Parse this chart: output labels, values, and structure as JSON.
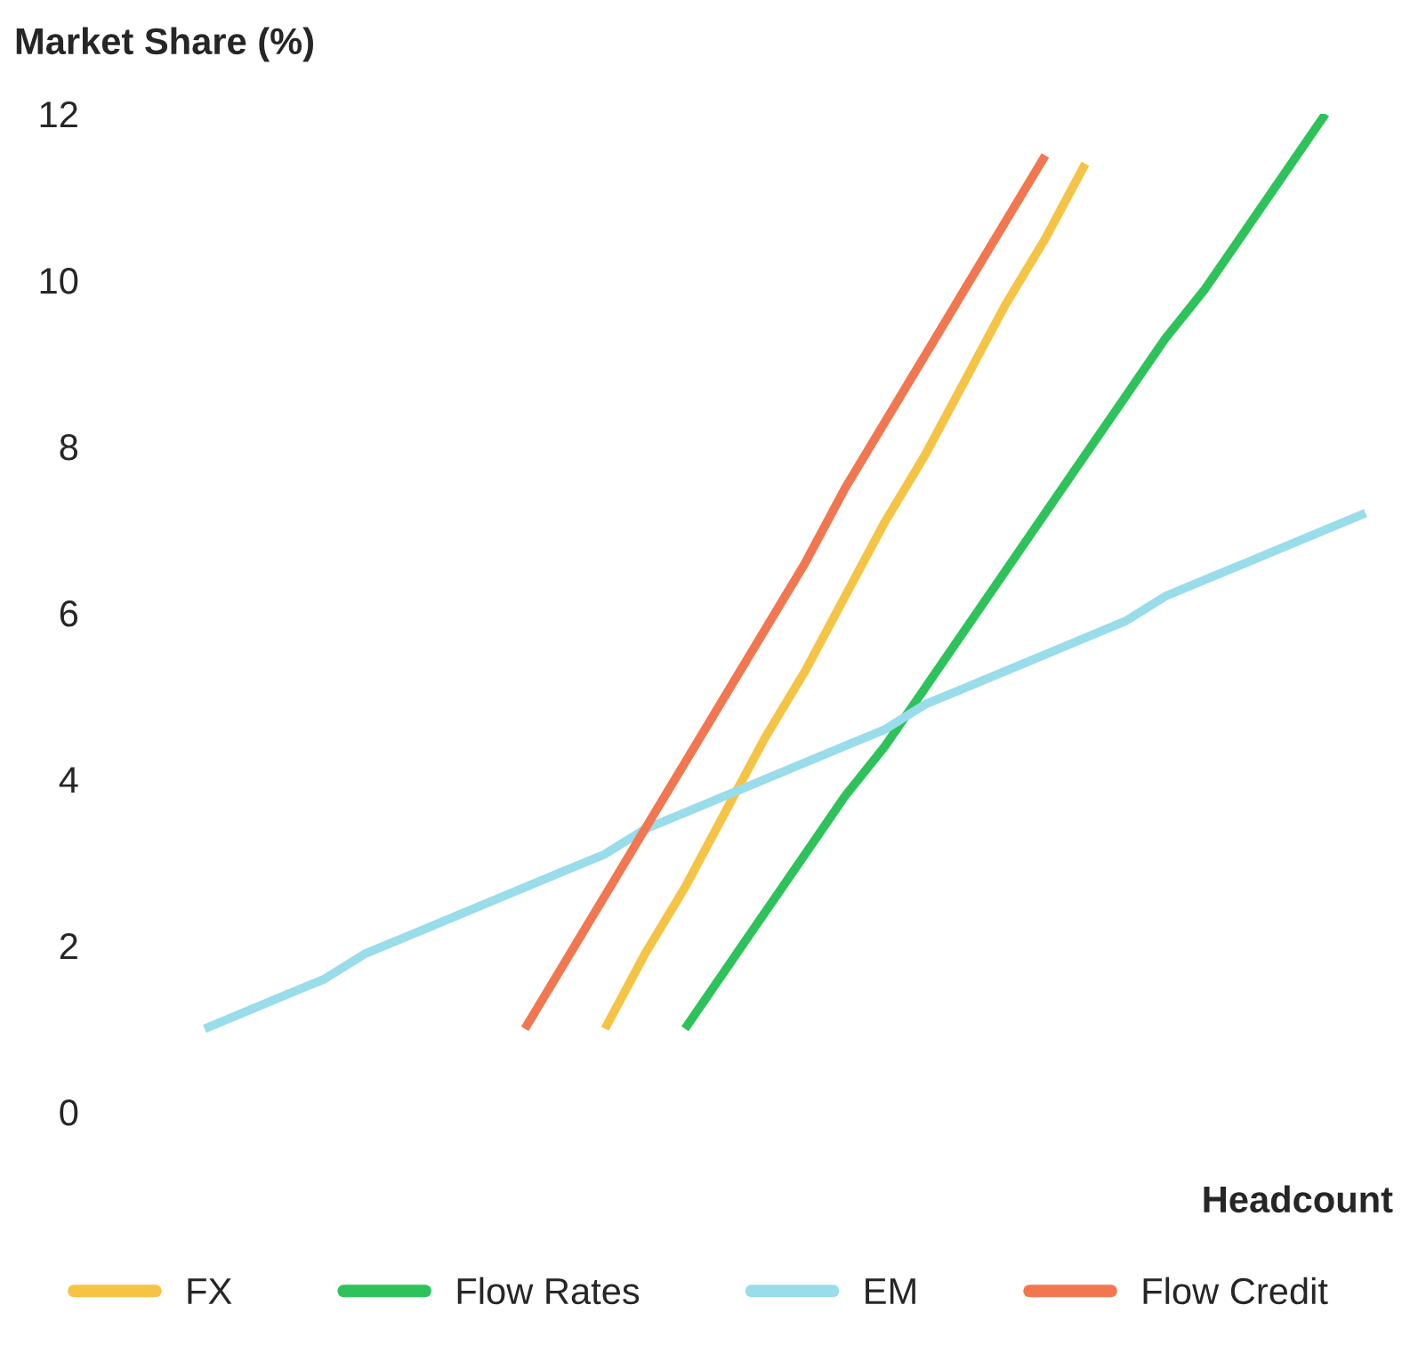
{
  "chart_data": {
    "type": "line",
    "ylabel": "Market Share (%)",
    "xlabel": "Headcount",
    "categories": [
      null,
      null,
      null,
      null,
      null,
      null,
      null,
      null,
      null,
      null,
      null,
      null,
      null,
      null,
      null,
      null,
      null,
      null,
      null,
      null,
      null,
      null,
      null,
      null,
      null,
      null,
      null,
      null,
      null,
      null
    ],
    "ylim": [
      0,
      12
    ],
    "yticks": [
      0,
      2,
      4,
      6,
      8,
      10,
      12
    ],
    "grid": false,
    "legend": "bottom",
    "marker": "none",
    "line_style": "solid",
    "series": [
      {
        "name": "FX",
        "color": "#f5c445",
        "values": [
          null,
          null,
          null,
          null,
          null,
          null,
          null,
          null,
          null,
          null,
          1,
          1.9,
          2.7,
          3.6,
          4.5,
          5.3,
          6.2,
          7.1,
          7.9,
          8.8,
          9.7,
          10.5,
          11.4,
          null,
          null,
          null,
          null,
          null,
          null,
          null
        ]
      },
      {
        "name": "Flow Rates",
        "color": "#2dc35a",
        "values": [
          null,
          null,
          null,
          null,
          null,
          null,
          null,
          null,
          null,
          null,
          null,
          null,
          1,
          1.7,
          2.4,
          3.1,
          3.8,
          4.4,
          5.1,
          5.8,
          6.5,
          7.2,
          7.9,
          8.6,
          9.3,
          9.9,
          10.6,
          11.3,
          12,
          null
        ]
      },
      {
        "name": "EM",
        "color": "#99dcea",
        "values": [
          1,
          1.2,
          1.4,
          1.6,
          1.9,
          2.1,
          2.3,
          2.5,
          2.7,
          2.9,
          3.1,
          3.4,
          3.6,
          3.8,
          4.0,
          4.2,
          4.4,
          4.6,
          4.9,
          5.1,
          5.3,
          5.5,
          5.7,
          5.9,
          6.2,
          6.4,
          6.6,
          6.8,
          7.0,
          7.2
        ]
      },
      {
        "name": "Flow Credit",
        "color": "#f27750",
        "values": [
          null,
          null,
          null,
          null,
          null,
          null,
          null,
          null,
          1,
          1.8,
          2.6,
          3.4,
          4.2,
          5.0,
          5.8,
          6.6,
          7.5,
          8.3,
          9.1,
          9.9,
          10.7,
          11.5,
          null,
          null,
          null,
          null,
          null,
          null,
          null,
          null
        ]
      }
    ]
  }
}
